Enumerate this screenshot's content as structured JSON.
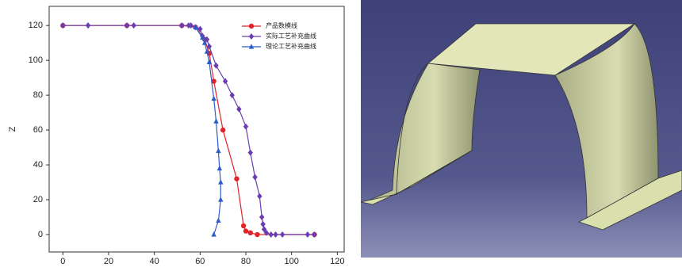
{
  "chart_data": {
    "type": "line",
    "ylabel": "Z",
    "xlim": [
      -6,
      123
    ],
    "ylim": [
      -10,
      131
    ],
    "xticks": [
      0,
      20,
      40,
      60,
      80,
      100,
      120
    ],
    "yticks": [
      0,
      20,
      40,
      60,
      80,
      100,
      120
    ],
    "legend": "upper right",
    "series": [
      {
        "name": "产品数模线",
        "color": "#e2232a",
        "marker": "circle",
        "x": [
          0,
          28,
          52,
          58,
          62,
          64,
          66,
          70,
          76,
          79,
          80,
          82,
          85,
          110
        ],
        "values": [
          120,
          120,
          120,
          119,
          112,
          104,
          88,
          60,
          32,
          5,
          2,
          1,
          0,
          0
        ]
      },
      {
        "name": "实际工艺补充曲线",
        "color": "#6a3db0",
        "marker": "diamond",
        "x": [
          0,
          11,
          28,
          31,
          52,
          55,
          56,
          58,
          60,
          61,
          63,
          64,
          67,
          71,
          74,
          77,
          80,
          82,
          84,
          86,
          87,
          87.5,
          88,
          89,
          91,
          93,
          96,
          107,
          110
        ],
        "values": [
          120,
          120,
          120,
          120,
          120,
          120,
          120,
          119,
          118,
          114,
          112,
          108,
          97,
          88,
          80,
          72,
          62,
          47,
          33,
          22,
          10,
          6,
          3,
          1,
          0,
          0,
          0,
          0,
          0
        ]
      },
      {
        "name": "理论工艺补充曲线",
        "color": "#2d5cc8",
        "marker": "triangle",
        "x": [
          58,
          61,
          62,
          63,
          64,
          66,
          67,
          68,
          68.5,
          69,
          69,
          68,
          66
        ],
        "values": [
          119,
          113,
          110,
          105,
          99,
          78,
          65,
          48,
          38,
          30,
          20,
          8,
          0
        ]
      }
    ]
  }
}
